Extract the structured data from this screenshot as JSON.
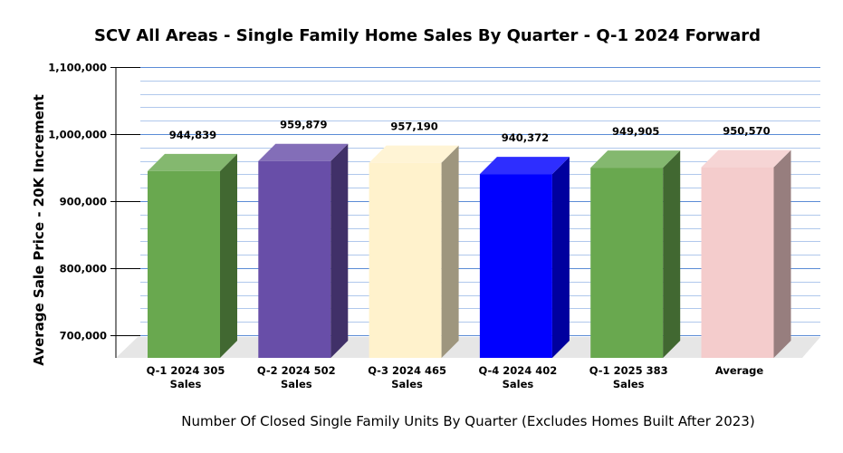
{
  "chart_data": {
    "type": "bar",
    "title": "SCV All Areas - Single Family Home Sales By Quarter - Q-1 2024 Forward",
    "xlabel": "Number Of Closed Single Family Units By Quarter (Excludes Homes Built After 2023)",
    "ylabel": "Average Sale Price - 20K Increment",
    "categories": [
      [
        "Q-1 2024 305",
        "Sales"
      ],
      [
        "Q-2 2024 502",
        "Sales"
      ],
      [
        "Q-3 2024 465",
        "Sales"
      ],
      [
        "Q-4 2024 402",
        "Sales"
      ],
      [
        "Q-1 2025 383",
        "Sales"
      ],
      [
        "Average"
      ]
    ],
    "values": [
      944839,
      959879,
      957190,
      940372,
      949905,
      950570
    ],
    "value_labels": [
      "944,839",
      "959,879",
      "957,190",
      "940,372",
      "949,905",
      "950,570"
    ],
    "bar_colors": [
      "#69a84f",
      "#684ea8",
      "#fff2cc",
      "#0000ff",
      "#69a84f",
      "#f4cccc"
    ],
    "ylim": [
      680000,
      1100000
    ],
    "yticks": [
      700000,
      800000,
      900000,
      1000000,
      1100000
    ],
    "ytick_labels": [
      "700,000",
      "800,000",
      "900,000",
      "1,000,000",
      "1,100,000"
    ],
    "grid": true,
    "three_d": true
  }
}
